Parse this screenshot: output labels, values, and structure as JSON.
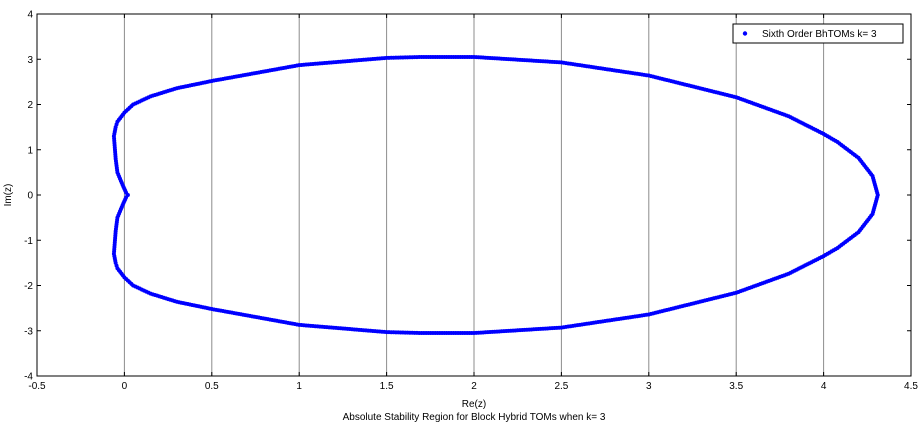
{
  "chart_data": {
    "type": "scatter",
    "xlabel": "Re(z)",
    "ylabel": "Im(z)",
    "caption": "Absolute Stability Region for Block Hybrid TOMs when k= 3",
    "xlim": [
      -0.5,
      4.5
    ],
    "ylim": [
      -4,
      4
    ],
    "xticks": [
      -0.5,
      0,
      0.5,
      1,
      1.5,
      2,
      2.5,
      3,
      3.5,
      4,
      4.5
    ],
    "xtick_labels": [
      "-0.5",
      "0",
      "0.5",
      "1",
      "1.5",
      "2",
      "2.5",
      "3",
      "3.5",
      "4",
      "4.5"
    ],
    "yticks": [
      -4,
      -3,
      -2,
      -1,
      0,
      1,
      2,
      3,
      4
    ],
    "ytick_labels": [
      "-4",
      "-3",
      "-2",
      "-1",
      "0",
      "1",
      "2",
      "3",
      "4"
    ],
    "grid": "vertical",
    "legend_position": "top-right",
    "series": [
      {
        "name": "Sixth Order BhTOMs k= 3",
        "color": "#0000ff",
        "marker": "dot",
        "points": [
          [
            4.31,
            0.0
          ],
          [
            4.28,
            0.42
          ],
          [
            4.2,
            0.82
          ],
          [
            4.08,
            1.17
          ],
          [
            4.0,
            1.35
          ],
          [
            3.8,
            1.74
          ],
          [
            3.5,
            2.16
          ],
          [
            3.0,
            2.64
          ],
          [
            2.5,
            2.93
          ],
          [
            2.0,
            3.05
          ],
          [
            1.7,
            3.05
          ],
          [
            1.5,
            3.03
          ],
          [
            1.0,
            2.87
          ],
          [
            0.5,
            2.52
          ],
          [
            0.3,
            2.36
          ],
          [
            0.15,
            2.18
          ],
          [
            0.05,
            2.0
          ],
          [
            0.0,
            1.82
          ],
          [
            -0.04,
            1.62
          ],
          [
            -0.05,
            1.5
          ],
          [
            -0.06,
            1.3
          ],
          [
            -0.05,
            0.8
          ],
          [
            -0.04,
            0.5
          ],
          [
            -0.01,
            0.22
          ],
          [
            0.01,
            0.05
          ],
          [
            0.02,
            0.0
          ],
          [
            0.01,
            -0.05
          ],
          [
            -0.01,
            -0.22
          ],
          [
            -0.04,
            -0.5
          ],
          [
            -0.05,
            -0.8
          ],
          [
            -0.06,
            -1.3
          ],
          [
            -0.05,
            -1.5
          ],
          [
            -0.04,
            -1.62
          ],
          [
            0.0,
            -1.82
          ],
          [
            0.05,
            -2.0
          ],
          [
            0.15,
            -2.18
          ],
          [
            0.3,
            -2.36
          ],
          [
            0.5,
            -2.52
          ],
          [
            1.0,
            -2.87
          ],
          [
            1.5,
            -3.03
          ],
          [
            1.7,
            -3.05
          ],
          [
            2.0,
            -3.05
          ],
          [
            2.5,
            -2.93
          ],
          [
            3.0,
            -2.64
          ],
          [
            3.5,
            -2.16
          ],
          [
            3.8,
            -1.74
          ],
          [
            4.0,
            -1.35
          ],
          [
            4.08,
            -1.17
          ],
          [
            4.2,
            -0.82
          ],
          [
            4.28,
            -0.42
          ],
          [
            4.31,
            0.0
          ]
        ]
      }
    ]
  }
}
